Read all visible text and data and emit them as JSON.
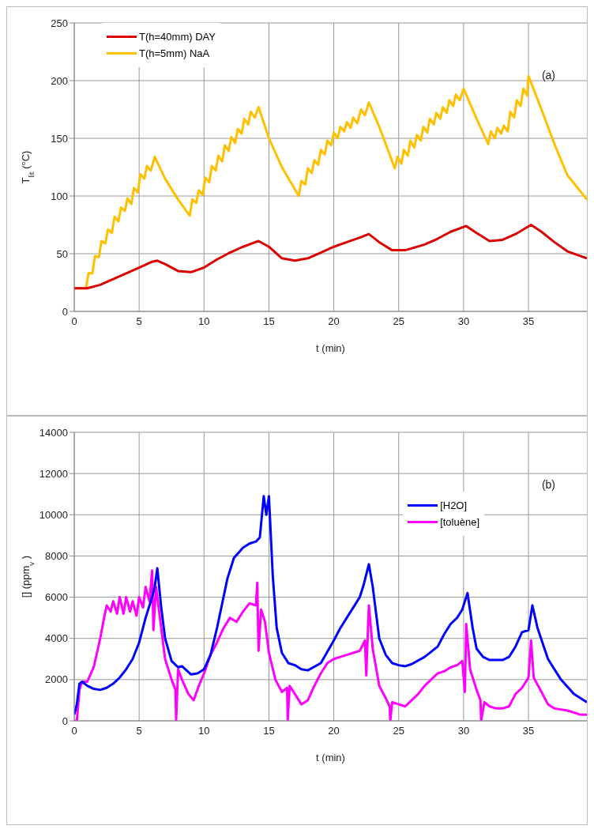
{
  "chart_data": [
    {
      "type": "line",
      "xlabel": "t (min)",
      "ylabel": "T$_{lit}$ (°C)",
      "xlim": [
        0,
        39.5
      ],
      "xticks": [
        0,
        5,
        10,
        15,
        20,
        25,
        30,
        35
      ],
      "ylim": [
        0,
        250
      ],
      "yticks": [
        0,
        50,
        100,
        150,
        200,
        250
      ],
      "grid": true,
      "legend": "top left",
      "annotations": [
        "(a)"
      ],
      "series": [
        {
          "name": "T(h=40mm) DAY",
          "color": "#dd0000",
          "x": [
            0,
            1,
            2,
            3,
            4,
            5,
            6,
            6.4,
            7,
            8,
            9,
            10,
            11,
            12,
            13,
            14.2,
            15,
            16,
            17,
            18,
            19,
            20,
            21,
            22,
            22.7,
            23.5,
            24.5,
            25.5,
            27,
            28,
            29,
            30.2,
            31,
            32,
            33,
            34,
            35.2,
            36,
            37,
            38,
            39.5
          ],
          "values": [
            20,
            20,
            23,
            28,
            33,
            38,
            43,
            44,
            41,
            35,
            34,
            38,
            45,
            51,
            56,
            61,
            56,
            46,
            44,
            46,
            51,
            56,
            60,
            64,
            67,
            60,
            53,
            53,
            58,
            63,
            69,
            74,
            68,
            61,
            62,
            67,
            75,
            69,
            60,
            52,
            46
          ]
        },
        {
          "name": "T(h=5mm) NaA",
          "color": "#ffc000",
          "x": [
            0,
            0.9,
            1.1,
            1.4,
            1.6,
            1.9,
            2.1,
            2.4,
            2.6,
            2.9,
            3.1,
            3.4,
            3.6,
            3.9,
            4.1,
            4.4,
            4.6,
            4.9,
            5.1,
            5.4,
            5.6,
            5.9,
            6.2,
            7,
            8,
            8.9,
            9.1,
            9.4,
            9.6,
            9.9,
            10.1,
            10.4,
            10.6,
            10.9,
            11.1,
            11.4,
            11.6,
            11.9,
            12.1,
            12.4,
            12.6,
            12.9,
            13.1,
            13.4,
            13.6,
            13.9,
            14.2,
            15,
            16,
            17.3,
            17.5,
            17.8,
            18,
            18.3,
            18.5,
            18.8,
            19,
            19.3,
            19.5,
            19.8,
            20,
            20.3,
            20.5,
            20.8,
            21,
            21.3,
            21.5,
            21.8,
            22.1,
            22.4,
            22.7,
            23.5,
            24.7,
            24.9,
            25.2,
            25.4,
            25.7,
            25.9,
            26.2,
            26.4,
            26.7,
            26.9,
            27.2,
            27.4,
            27.7,
            27.9,
            28.2,
            28.4,
            28.7,
            28.9,
            29.2,
            29.4,
            29.7,
            30,
            31,
            31.9,
            32.1,
            32.4,
            32.6,
            32.9,
            33.1,
            33.4,
            33.6,
            33.9,
            34.1,
            34.4,
            34.6,
            34.9,
            35,
            36,
            37,
            38,
            39.5
          ],
          "values": [
            20,
            20,
            33,
            33,
            48,
            47,
            61,
            59,
            71,
            68,
            82,
            78,
            90,
            87,
            98,
            93,
            107,
            103,
            119,
            115,
            126,
            122,
            134,
            115,
            97,
            83,
            97,
            94,
            105,
            101,
            116,
            112,
            126,
            122,
            135,
            130,
            144,
            139,
            151,
            146,
            158,
            154,
            167,
            162,
            173,
            168,
            177,
            150,
            125,
            100,
            113,
            110,
            124,
            120,
            131,
            127,
            140,
            136,
            148,
            144,
            155,
            150,
            160,
            156,
            164,
            159,
            168,
            163,
            175,
            170,
            181,
            160,
            124,
            134,
            128,
            140,
            135,
            148,
            142,
            153,
            148,
            160,
            155,
            167,
            162,
            172,
            167,
            177,
            172,
            183,
            178,
            188,
            183,
            193,
            167,
            145,
            156,
            150,
            159,
            154,
            161,
            156,
            173,
            168,
            183,
            178,
            193,
            187,
            204,
            175,
            145,
            118,
            97
          ]
        }
      ]
    },
    {
      "type": "line",
      "xlabel": "t (min)",
      "ylabel": "[] (ppm$_{v}$)",
      "xlim": [
        0,
        39.5
      ],
      "xticks": [
        0,
        5,
        10,
        15,
        20,
        25,
        30,
        35
      ],
      "ylim": [
        0,
        14000
      ],
      "yticks": [
        0,
        2000,
        4000,
        6000,
        8000,
        10000,
        12000,
        14000
      ],
      "grid": true,
      "legend": "top right",
      "annotations": [
        "(b)"
      ],
      "series": [
        {
          "name": "[H2O]",
          "color": "#0000ff",
          "x": [
            0,
            0.2,
            0.4,
            0.6,
            1,
            1.5,
            2,
            2.5,
            3,
            3.5,
            4,
            4.5,
            5,
            5.5,
            6,
            6.2,
            6.4,
            6.7,
            7,
            7.5,
            8,
            8.3,
            9,
            9.5,
            10,
            10.5,
            11,
            11.5,
            11.8,
            12.3,
            13,
            13.5,
            14,
            14.3,
            14.6,
            14.8,
            15,
            15.3,
            15.6,
            16,
            16.5,
            17,
            17.5,
            18,
            19,
            20,
            20.5,
            21,
            21.5,
            22,
            22.3,
            22.7,
            23,
            23.5,
            24,
            24.5,
            25,
            25.5,
            26,
            27,
            28,
            28.5,
            29,
            29.5,
            29.9,
            30.3,
            30.7,
            31,
            31.5,
            32,
            33,
            33.5,
            34,
            34.5,
            35,
            35.3,
            35.7,
            36.5,
            37.5,
            38.5,
            39.5
          ],
          "values": [
            300,
            800,
            1800,
            1900,
            1700,
            1550,
            1500,
            1600,
            1800,
            2100,
            2500,
            3000,
            3800,
            5000,
            6000,
            6500,
            7400,
            5500,
            4000,
            2900,
            2600,
            2650,
            2250,
            2300,
            2500,
            3200,
            4500,
            6000,
            6900,
            7900,
            8400,
            8600,
            8700,
            8900,
            10900,
            10000,
            10900,
            7000,
            4500,
            3300,
            2800,
            2700,
            2500,
            2450,
            2800,
            3900,
            4500,
            5000,
            5500,
            6000,
            6600,
            7600,
            6500,
            4000,
            3200,
            2800,
            2700,
            2650,
            2750,
            3100,
            3600,
            4200,
            4700,
            5000,
            5400,
            6200,
            4500,
            3500,
            3100,
            2950,
            2950,
            3100,
            3600,
            4300,
            4400,
            5600,
            4500,
            3000,
            2000,
            1300,
            900
          ]
        },
        {
          "name": "[toluène]",
          "color": "#ff00ff",
          "x": [
            0,
            0.2,
            0.4,
            0.6,
            1,
            1.5,
            2,
            2.3,
            2.5,
            2.8,
            3,
            3.3,
            3.5,
            3.8,
            4,
            4.3,
            4.5,
            4.8,
            5,
            5.3,
            5.5,
            5.8,
            6,
            6.1,
            6.3,
            6.6,
            7,
            7.5,
            7.8,
            7.85,
            8,
            8.3,
            8.8,
            9.2,
            9.6,
            10,
            10.5,
            11,
            11.5,
            12,
            12.5,
            13,
            13.5,
            14,
            14.1,
            14.2,
            14.4,
            14.7,
            15,
            15.5,
            16,
            16.4,
            16.45,
            16.6,
            17,
            17.5,
            18,
            18.5,
            19,
            19.5,
            20,
            20.5,
            21,
            21.5,
            22,
            22.4,
            22.5,
            22.7,
            23,
            23.5,
            24,
            24.3,
            24.35,
            24.5,
            25,
            25.5,
            26,
            26.5,
            27,
            27.5,
            28,
            28.5,
            29,
            29.5,
            29.9,
            30.1,
            30.2,
            30.5,
            31,
            31.3,
            31.35,
            31.6,
            32,
            32.5,
            33,
            33.5,
            34,
            34.5,
            35,
            35.2,
            35.4,
            36,
            36.5,
            37,
            38,
            39,
            39.5
          ],
          "values": [
            0,
            0,
            1500,
            1900,
            1900,
            2600,
            4000,
            5000,
            5600,
            5300,
            5800,
            5200,
            6000,
            5200,
            6000,
            5300,
            5800,
            5100,
            6000,
            5500,
            6500,
            5800,
            7300,
            4400,
            6500,
            5000,
            3000,
            2000,
            1500,
            0,
            2500,
            2000,
            1300,
            1000,
            1700,
            2300,
            3200,
            3800,
            4500,
            5000,
            4800,
            5300,
            5700,
            5600,
            6700,
            3400,
            5400,
            4800,
            3300,
            2000,
            1400,
            1600,
            0,
            1700,
            1300,
            800,
            1000,
            1700,
            2300,
            2800,
            3000,
            3100,
            3200,
            3300,
            3400,
            3900,
            2200,
            5600,
            3500,
            1700,
            1100,
            700,
            0,
            900,
            800,
            700,
            1000,
            1300,
            1700,
            2000,
            2300,
            2400,
            2600,
            2700,
            2900,
            1400,
            4700,
            2500,
            1500,
            1000,
            0,
            900,
            700,
            600,
            600,
            700,
            1300,
            1600,
            2100,
            3900,
            2100,
            1400,
            800,
            600,
            500,
            300,
            300
          ]
        }
      ]
    }
  ]
}
